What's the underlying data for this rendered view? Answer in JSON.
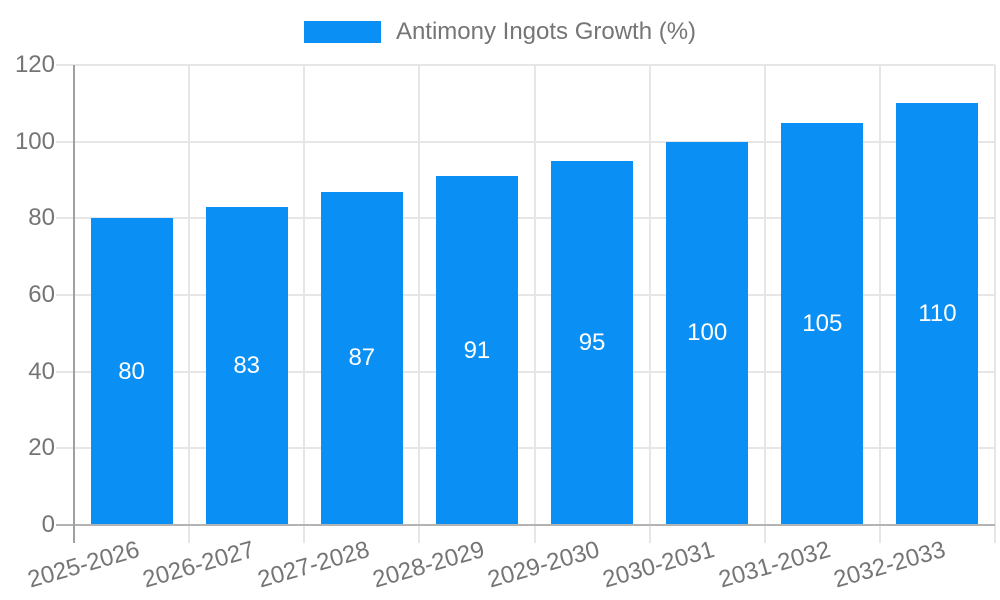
{
  "chart_data": {
    "type": "bar",
    "title": "Antimony Ingots Growth (%)",
    "categories": [
      "2025-2026",
      "2026-2027",
      "2027-2028",
      "2028-2029",
      "2029-2030",
      "2030-2031",
      "2031-2032",
      "2032-2033"
    ],
    "values": [
      80,
      83,
      87,
      91,
      95,
      100,
      105,
      110
    ],
    "value_labels": [
      "80",
      "83",
      "87",
      "91",
      "95",
      "100",
      "105",
      "110"
    ],
    "xlabel": "",
    "ylabel": "",
    "ylim": [
      0,
      120
    ],
    "yticks": [
      0,
      20,
      40,
      60,
      80,
      100,
      120
    ],
    "grid": true,
    "legend_position": "top",
    "x_label_rotation_deg": -16
  },
  "colors": {
    "bar": "#0a90f4",
    "value_label_text": "#ffffff",
    "axis_text": "#757575",
    "legend_text": "#757575",
    "gridline": "#e6e6e6",
    "baseline": "#b3b3b3",
    "axis_line": "#a0a0a0",
    "background": "#ffffff"
  }
}
